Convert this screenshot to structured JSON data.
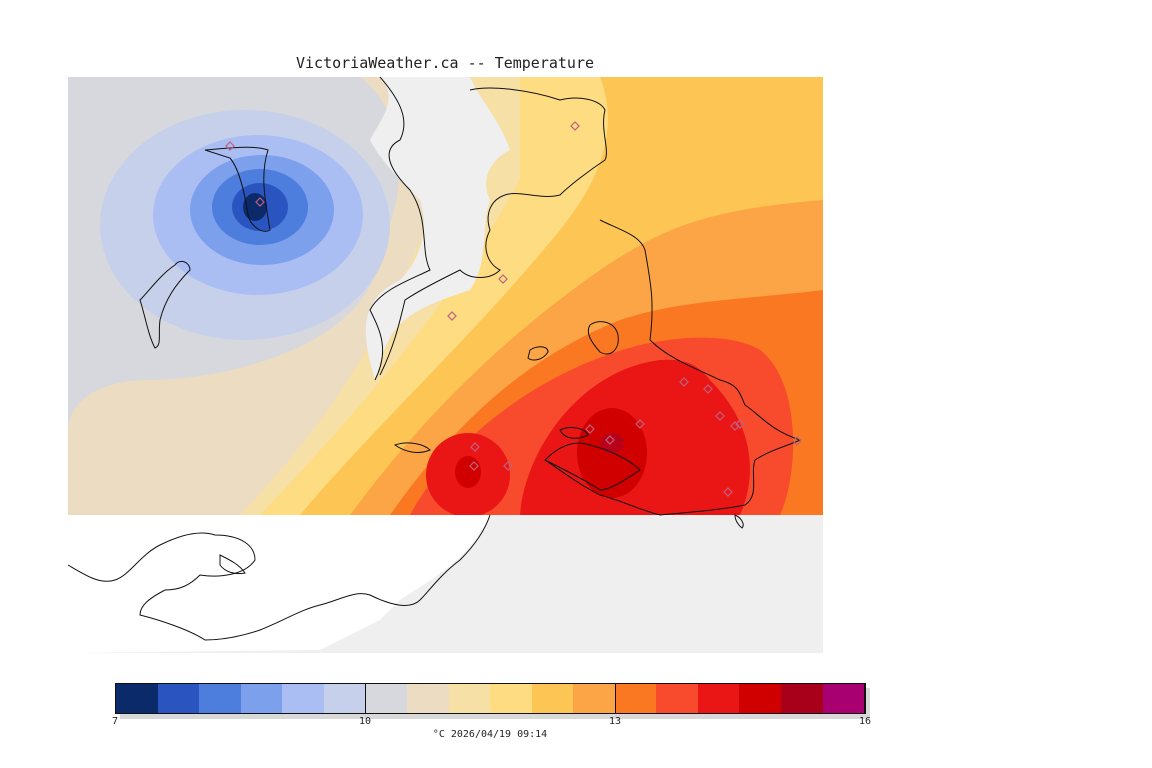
{
  "title": "VictoriaWeather.ca -- Temperature",
  "legend": {
    "caption": "°C  2026/04/19 09:14",
    "min": 7,
    "max": 16,
    "ticks": [
      {
        "value": 7,
        "label": "7"
      },
      {
        "value": 10,
        "label": "10"
      },
      {
        "value": 13,
        "label": "13"
      },
      {
        "value": 16,
        "label": "16"
      }
    ],
    "colors": [
      "#0b2a6a",
      "#2a55c0",
      "#4d7ede",
      "#7ca0ec",
      "#aabef4",
      "#c6d0ea",
      "#d6d8dd",
      "#ecdcc2",
      "#f6e0a6",
      "#fedc82",
      "#fdc654",
      "#fca546",
      "#fa7822",
      "#f84b2d",
      "#ea1616",
      "#d00000",
      "#a8001a",
      "#a80071"
    ]
  },
  "map": {
    "unit": "°C",
    "colors": {
      "background": "#efefef",
      "coastline": "#111111",
      "station_marker": "#c06080"
    },
    "temperature_centers": [
      {
        "name": "cold-core",
        "value": 7.5
      },
      {
        "name": "warm-core-west",
        "value": 15.2
      },
      {
        "name": "warm-core-east",
        "value": 15.4
      }
    ]
  }
}
